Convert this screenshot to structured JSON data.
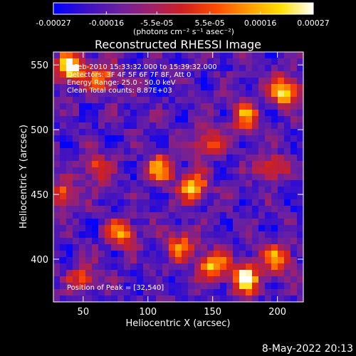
{
  "chart_data": {
    "type": "heatmap",
    "title": "Reconstructed RHESSI Image",
    "xlabel": "Heliocentric X (arcsec)",
    "ylabel": "Heliocentric Y (arcsec)",
    "xlim": [
      27,
      220
    ],
    "ylim": [
      367,
      560
    ],
    "x_ticks": [
      50,
      100,
      150,
      200
    ],
    "y_ticks": [
      400,
      450,
      500,
      550
    ],
    "colorbar": {
      "range": [
        -0.00027,
        0.00027
      ],
      "tick_labels": [
        "-0.00027",
        "-0.00016",
        "-5.5e-05",
        "5.5e-05",
        "0.00016",
        "0.00027"
      ],
      "tick_values": [
        -0.00027,
        -0.00016,
        -5.5e-05,
        5.5e-05,
        0.00016,
        0.00027
      ],
      "units": "(photons cm⁻² s⁻¹ asec⁻²)",
      "colormap": [
        "#0000ff",
        "#3a10c8",
        "#6a20a0",
        "#a0206a",
        "#d02020",
        "#ff4a00",
        "#ff9a00",
        "#ffe000",
        "#ffffff"
      ]
    },
    "annotations": [
      "8-Feb-2010 15:33:32.000 to 15:39:32.000",
      "Detectors: 3F 4F 5F 6F 7F 8F, Att 0",
      "Energy Range: 25.0 - 50.0 keV",
      "Clean     Total counts: 8.87E+03"
    ],
    "peak_label": "Position of Peak = [32,540]",
    "peak": [
      32,
      540
    ],
    "hotspots": [
      {
        "x": 40,
        "y": 548,
        "v": 1.0
      },
      {
        "x": 65,
        "y": 540,
        "v": 0.6
      },
      {
        "x": 205,
        "y": 530,
        "v": 0.9
      },
      {
        "x": 175,
        "y": 510,
        "v": 0.6
      },
      {
        "x": 145,
        "y": 490,
        "v": 0.55
      },
      {
        "x": 110,
        "y": 470,
        "v": 0.65
      },
      {
        "x": 135,
        "y": 455,
        "v": 0.8
      },
      {
        "x": 60,
        "y": 470,
        "v": 0.5
      },
      {
        "x": 35,
        "y": 450,
        "v": 0.55
      },
      {
        "x": 80,
        "y": 420,
        "v": 0.6
      },
      {
        "x": 150,
        "y": 395,
        "v": 0.75
      },
      {
        "x": 175,
        "y": 385,
        "v": 0.95
      },
      {
        "x": 200,
        "y": 400,
        "v": 0.7
      },
      {
        "x": 125,
        "y": 410,
        "v": 0.6
      },
      {
        "x": 50,
        "y": 385,
        "v": 0.5
      },
      {
        "x": 195,
        "y": 470,
        "v": 0.45
      }
    ]
  },
  "footer_date": "8-May-2022 20:13"
}
